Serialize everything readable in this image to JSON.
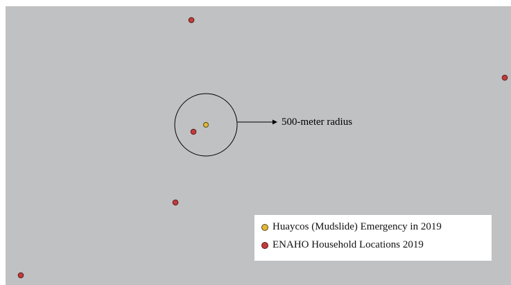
{
  "annotation": {
    "radius_label": "500-meter radius"
  },
  "legend": {
    "items": [
      {
        "label": "Huaycos (Mudslide) Emergency in 2019",
        "color": "#e1b83a"
      },
      {
        "label": "ENAHO Household Locations 2019",
        "color": "#c23b3b"
      }
    ]
  },
  "colors": {
    "map_background": "#c0c1c3",
    "emergency_point": "#e1b83a",
    "household_point": "#c23b3b"
  }
}
